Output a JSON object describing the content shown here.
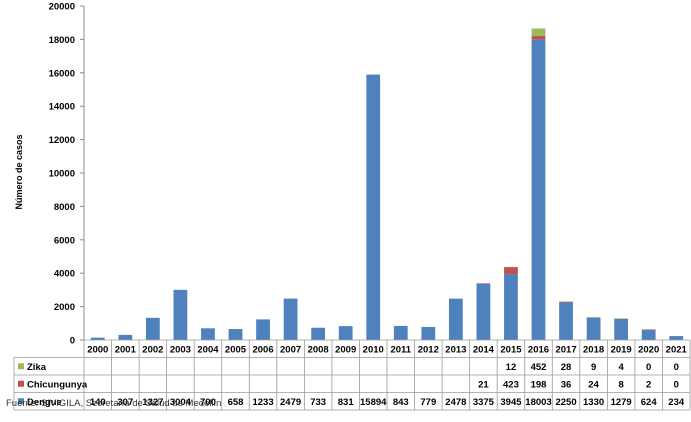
{
  "chart_data": {
    "type": "bar",
    "stacked": true,
    "ylabel": "Número de casos",
    "ylim": [
      0,
      20000
    ],
    "yticks": [
      0,
      2000,
      4000,
      6000,
      8000,
      10000,
      12000,
      14000,
      16000,
      18000,
      20000
    ],
    "grid": false,
    "legend": "data table below chart",
    "categories": [
      "2000",
      "2001",
      "2002",
      "2003",
      "2004",
      "2005",
      "2006",
      "2007",
      "2008",
      "2009",
      "2010",
      "2011",
      "2012",
      "2013",
      "2014",
      "2015",
      "2016",
      "2017",
      "2018",
      "2019",
      "2020",
      "2021"
    ],
    "series": [
      {
        "name": "Dengue",
        "color": "#4f81bd",
        "values": [
          140,
          307,
          1327,
          3004,
          700,
          658,
          1233,
          2479,
          733,
          831,
          15894,
          843,
          779,
          2478,
          3375,
          3945,
          18003,
          2250,
          1330,
          1279,
          624,
          234
        ],
        "labels": [
          "140",
          "307",
          "1327",
          "3004",
          "700",
          "658",
          "1233",
          "2479",
          "733",
          "831",
          "15894",
          "843",
          "779",
          "2478",
          "3375",
          "3945",
          "18003",
          "2250",
          "1330",
          "1279",
          "624",
          "234"
        ]
      },
      {
        "name": "Chicungunya",
        "color": "#c0504d",
        "values": [
          0,
          0,
          0,
          0,
          0,
          0,
          0,
          0,
          0,
          0,
          0,
          0,
          0,
          0,
          21,
          423,
          198,
          36,
          24,
          8,
          2,
          0
        ],
        "labels": [
          "",
          "",
          "",
          "",
          "",
          "",
          "",
          "",
          "",
          "",
          "",
          "",
          "",
          "",
          "21",
          "423",
          "198",
          "36",
          "24",
          "8",
          "2",
          "0"
        ]
      },
      {
        "name": "Zika",
        "color": "#9bbb59",
        "values": [
          0,
          0,
          0,
          0,
          0,
          0,
          0,
          0,
          0,
          0,
          0,
          0,
          0,
          0,
          0,
          12,
          452,
          28,
          9,
          4,
          0,
          0
        ],
        "labels": [
          "",
          "",
          "",
          "",
          "",
          "",
          "",
          "",
          "",
          "",
          "",
          "",
          "",
          "",
          "",
          "12",
          "452",
          "28",
          "9",
          "4",
          "0",
          "0"
        ]
      }
    ]
  },
  "source_text": "Fuente: SIVIGILA, Secretaría de Salud de Medellín"
}
